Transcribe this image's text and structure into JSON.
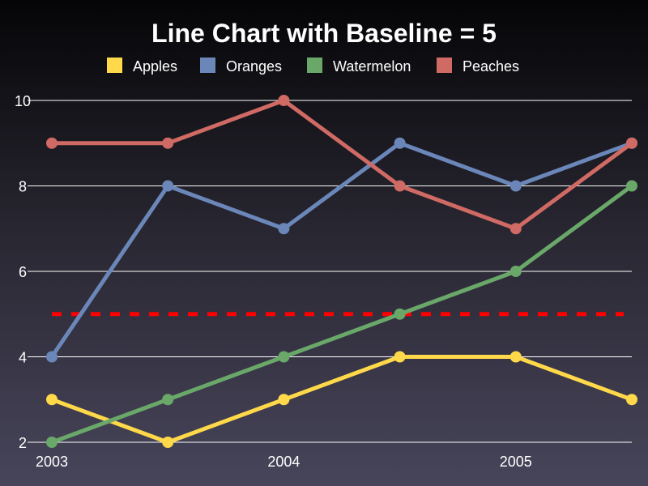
{
  "chart_data": {
    "type": "line",
    "title": "Line Chart with Baseline = 5",
    "x": [
      0,
      1,
      2,
      3,
      4,
      5
    ],
    "xlim": [
      0,
      5
    ],
    "ylim": [
      2,
      10
    ],
    "x_ticks": [
      {
        "x": 0,
        "label": "2003"
      },
      {
        "x": 2,
        "label": "2004"
      },
      {
        "x": 4,
        "label": "2005"
      }
    ],
    "y_ticks": [
      2,
      4,
      6,
      8,
      10
    ],
    "y_tick_labels": [
      "2",
      "4",
      "6",
      "8",
      "10"
    ],
    "grid": true,
    "legend": "top",
    "baseline": {
      "value": 5,
      "color": "#ff0000",
      "style": "dashed"
    },
    "series": [
      {
        "name": "Apples",
        "color": "#ffd94a",
        "values": [
          3,
          2,
          3,
          4,
          4,
          3
        ]
      },
      {
        "name": "Oranges",
        "color": "#6b87b9",
        "values": [
          4,
          8,
          7,
          9,
          8,
          9
        ]
      },
      {
        "name": "Watermelon",
        "color": "#6aa86a",
        "values": [
          2,
          3,
          4,
          5,
          6,
          8
        ]
      },
      {
        "name": "Peaches",
        "color": "#d06a64",
        "values": [
          9,
          9,
          10,
          8,
          7,
          9
        ]
      }
    ]
  }
}
